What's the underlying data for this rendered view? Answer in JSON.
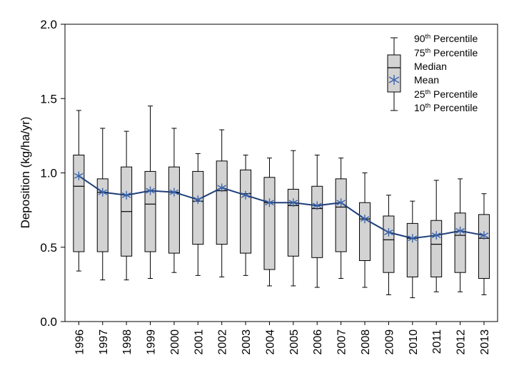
{
  "chart_data": {
    "type": "box",
    "title": "",
    "xlabel": "",
    "ylabel": "Deposition (kg/ha/yr)",
    "ylim": [
      0,
      2.0
    ],
    "yticks": [
      "0.0",
      "0.5",
      "1.0",
      "1.5",
      "2.0"
    ],
    "ytick_values": [
      0,
      0.5,
      1.0,
      1.5,
      2.0
    ],
    "categories": [
      "1996",
      "1997",
      "1998",
      "1999",
      "2000",
      "2001",
      "2002",
      "2003",
      "2004",
      "2005",
      "2006",
      "2007",
      "2008",
      "2009",
      "2010",
      "2011",
      "2012",
      "2013"
    ],
    "p10": [
      0.34,
      0.28,
      0.28,
      0.29,
      0.33,
      0.31,
      0.3,
      0.31,
      0.24,
      0.24,
      0.23,
      0.29,
      0.23,
      0.18,
      0.16,
      0.2,
      0.2,
      0.18
    ],
    "p25": [
      0.47,
      0.47,
      0.44,
      0.47,
      0.46,
      0.52,
      0.52,
      0.46,
      0.35,
      0.44,
      0.43,
      0.47,
      0.41,
      0.33,
      0.3,
      0.3,
      0.33,
      0.29
    ],
    "median": [
      0.91,
      0.87,
      0.74,
      0.79,
      0.87,
      0.81,
      0.88,
      0.86,
      0.8,
      0.78,
      0.76,
      0.77,
      0.69,
      0.55,
      0.56,
      0.52,
      0.58,
      0.56
    ],
    "mean": [
      0.98,
      0.87,
      0.85,
      0.88,
      0.87,
      0.82,
      0.9,
      0.85,
      0.8,
      0.8,
      0.78,
      0.8,
      0.69,
      0.6,
      0.56,
      0.58,
      0.61,
      0.58
    ],
    "p75": [
      1.12,
      0.96,
      1.04,
      1.01,
      1.04,
      1.01,
      1.08,
      1.02,
      0.97,
      0.89,
      0.91,
      0.96,
      0.8,
      0.71,
      0.66,
      0.68,
      0.73,
      0.72
    ],
    "p90": [
      1.42,
      1.3,
      1.28,
      1.45,
      1.3,
      1.13,
      1.29,
      1.12,
      1.1,
      1.15,
      1.12,
      1.1,
      1.0,
      0.85,
      0.81,
      0.95,
      0.96,
      0.86
    ],
    "colors": {
      "box_fill": "#d3d3d3",
      "mean_line": "#1f3f7a",
      "mean_marker": "#3b64ad"
    },
    "legend": {
      "position": "top-right",
      "p90": {
        "label": "90",
        "sup": "th",
        "rest": " Percentile"
      },
      "p75": {
        "label": "75",
        "sup": "th",
        "rest": " Percentile"
      },
      "median": "Median",
      "mean": "Mean",
      "p25": {
        "label": "25",
        "sup": "th",
        "rest": " Percentile"
      },
      "p10": {
        "label": "10",
        "sup": "th",
        "rest": " Percentile"
      }
    }
  }
}
